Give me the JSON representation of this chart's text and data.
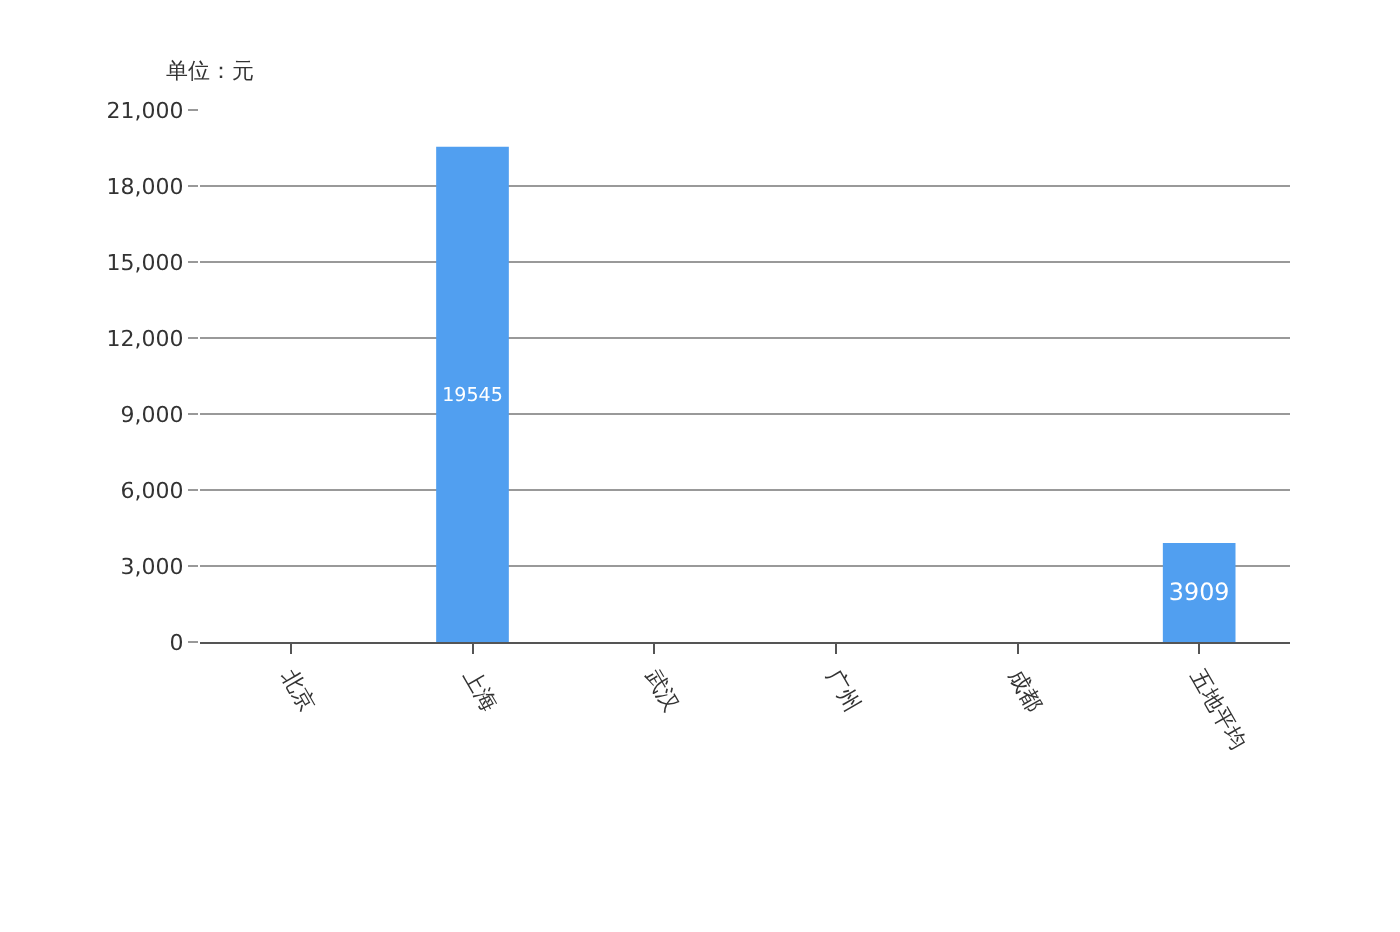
{
  "chart_data": {
    "type": "bar",
    "categories": [
      "北京",
      "上海",
      "武汉",
      "广州",
      "成都",
      "五地平均"
    ],
    "values": [
      0,
      19545,
      0,
      0,
      0,
      3909
    ],
    "value_labels": [
      null,
      "19545",
      null,
      null,
      null,
      "3909"
    ],
    "color": "#519ff0",
    "ylim": [
      0,
      21000
    ],
    "yticks": [
      0,
      {
        "value": 3000,
        "label": "3,000"
      },
      {
        "value": 6000,
        "label": "6,000"
      },
      {
        "value": 9000,
        "label": "9,000"
      },
      {
        "value": 12000,
        "label": "12,000"
      },
      {
        "value": 15000,
        "label": "15,000"
      },
      {
        "value": 18000,
        "label": "18,000"
      },
      {
        "value": 21000,
        "label": "21,000"
      }
    ],
    "grid": "y",
    "annotations": [
      "单位：元"
    ]
  }
}
